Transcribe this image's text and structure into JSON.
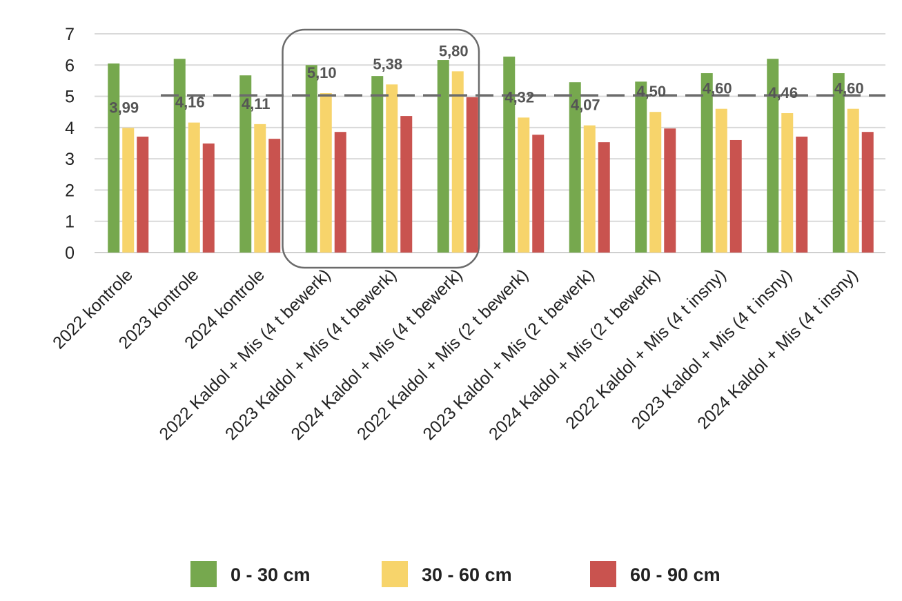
{
  "chart_data": {
    "type": "bar",
    "title": "",
    "xlabel": "",
    "ylabel": "",
    "ylim": [
      0,
      7
    ],
    "yticks": [
      "0",
      "1",
      "2",
      "3",
      "4",
      "5",
      "6",
      "7"
    ],
    "grid": true,
    "legend_position": "bottom",
    "categories": [
      "2022 kontrole",
      "2023 kontrole",
      "2024 kontrole",
      "2022 Kaldol + Mis (4 t bewerk)",
      "2023 Kaldol + Mis (4 t bewerk)",
      "2024 Kaldol + Mis (4 t bewerk)",
      "2022 Kaldol + Mis (2 t bewerk)",
      "2023 Kaldol + Mis (2 t bewerk)",
      "2024 Kaldol + Mis (2 t bewerk)",
      "2022 Kaldol + Mis (4 t insny)",
      "2023 Kaldol + Mis (4 t insny)",
      "2024 Kaldol + Mis (4 t insny)"
    ],
    "series": [
      {
        "name": "0 - 30 cm",
        "color": "#76a84e",
        "values": [
          6.05,
          6.2,
          5.67,
          6.0,
          5.65,
          6.16,
          6.27,
          5.45,
          5.47,
          5.74,
          6.2,
          5.74
        ]
      },
      {
        "name": "30 - 60 cm",
        "color": "#f7d46b",
        "values": [
          3.99,
          4.16,
          4.11,
          5.1,
          5.38,
          5.8,
          4.32,
          4.07,
          4.5,
          4.6,
          4.46,
          4.6
        ]
      },
      {
        "name": "60 - 90 cm",
        "color": "#c9534f",
        "values": [
          3.71,
          3.49,
          3.64,
          3.86,
          4.37,
          4.97,
          3.77,
          3.53,
          3.97,
          3.6,
          3.71,
          3.86
        ]
      }
    ],
    "data_labels": [
      "3,99",
      "4,16",
      "4,11",
      "5,10",
      "5,38",
      "5,80",
      "4,32",
      "4,07",
      "4,50",
      "4,60",
      "4,46",
      "4,60"
    ],
    "reference_line": {
      "value": 5.03,
      "style": "dashed",
      "color": "#6b6b6b"
    },
    "highlight_categories": [
      3,
      4,
      5
    ]
  }
}
